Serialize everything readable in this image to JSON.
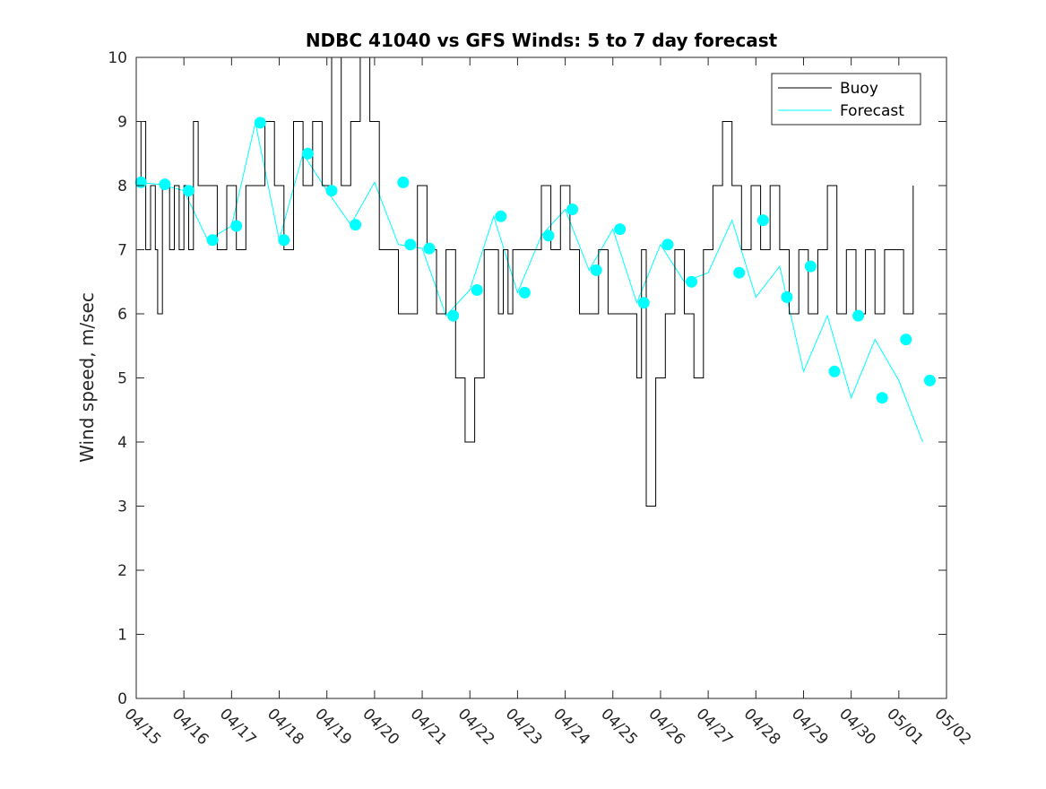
{
  "chart_data": {
    "type": "line",
    "title": "NDBC 41040 vs GFS Winds: 5 to 7 day forecast",
    "xlabel": "",
    "ylabel": "Wind speed, m/sec",
    "x_ticks": [
      "04/15",
      "04/16",
      "04/17",
      "04/18",
      "04/19",
      "04/20",
      "04/21",
      "04/22",
      "04/23",
      "04/24",
      "04/25",
      "04/26",
      "04/27",
      "04/28",
      "04/29",
      "04/30",
      "05/01",
      "05/02"
    ],
    "xlim": [
      0,
      17
    ],
    "ylim": [
      0,
      10
    ],
    "y_ticks": [
      0,
      1,
      2,
      3,
      4,
      5,
      6,
      7,
      8,
      9,
      10
    ],
    "grid": false,
    "legend": {
      "location": "top-right",
      "entries": [
        "Buoy",
        "Forecast"
      ]
    },
    "colors": {
      "buoy": "#000000",
      "forecast": "#00FFFF",
      "axes": "#262626"
    },
    "series": [
      {
        "name": "Buoy",
        "x": [
          0.0,
          0.1,
          0.2,
          0.3,
          0.4,
          0.45,
          0.55,
          0.7,
          0.8,
          0.9,
          1.0,
          1.1,
          1.2,
          1.3,
          1.5,
          1.7,
          1.9,
          2.1,
          2.3,
          2.5,
          2.7,
          2.9,
          3.1,
          3.3,
          3.5,
          3.7,
          3.9,
          4.1,
          4.3,
          4.5,
          4.7,
          4.9,
          5.1,
          5.3,
          5.5,
          5.7,
          5.9,
          6.1,
          6.3,
          6.5,
          6.7,
          6.9,
          7.1,
          7.3,
          7.5,
          7.6,
          7.7,
          7.8,
          7.9,
          8.1,
          8.3,
          8.5,
          8.7,
          8.9,
          9.1,
          9.3,
          9.5,
          9.7,
          9.9,
          10.1,
          10.3,
          10.5,
          10.6,
          10.7,
          10.9,
          11.1,
          11.3,
          11.5,
          11.7,
          11.9,
          12.1,
          12.3,
          12.5,
          12.7,
          12.9,
          13.1,
          13.3,
          13.5,
          13.7,
          13.9,
          14.1,
          14.3,
          14.5,
          14.7,
          14.9,
          15.1,
          15.3,
          15.5,
          15.7,
          15.9,
          16.1,
          16.3
        ],
        "values": [
          8,
          9,
          7,
          8,
          7,
          6,
          8,
          7,
          8,
          7,
          8,
          7,
          9,
          8,
          8,
          7,
          8,
          7,
          8,
          8,
          9,
          8,
          7,
          9,
          8,
          9,
          8,
          10,
          8,
          9,
          10,
          9,
          7,
          7,
          6,
          6,
          8,
          7,
          6,
          7,
          5,
          4,
          5,
          7,
          7,
          6,
          7,
          6,
          7,
          7,
          7,
          8,
          7,
          8,
          7,
          6,
          6,
          7,
          6,
          6,
          6,
          5,
          7,
          3,
          5,
          6,
          7,
          6,
          5,
          7,
          8,
          9,
          8,
          7,
          8,
          7,
          8,
          7,
          6,
          7,
          6,
          7,
          8,
          6,
          7,
          6,
          7,
          6,
          7,
          7,
          6,
          8
        ]
      },
      {
        "name": "Forecast",
        "x": [
          0.0,
          0.5,
          1.0,
          1.5,
          2.0,
          2.5,
          3.0,
          3.5,
          4.0,
          4.5,
          5.0,
          5.5,
          6.0,
          6.5,
          7.0,
          7.5,
          8.0,
          8.5,
          9.0,
          9.5,
          10.0,
          10.5,
          11.0,
          11.5,
          12.0,
          12.5,
          13.0,
          13.5,
          14.0,
          14.5,
          15.0,
          15.5,
          16.0,
          16.5
        ],
        "values": [
          8.05,
          8.02,
          7.92,
          7.15,
          7.37,
          8.98,
          7.15,
          8.5,
          7.92,
          7.39,
          8.05,
          7.08,
          7.02,
          5.97,
          6.37,
          7.52,
          6.33,
          7.22,
          7.63,
          6.68,
          7.32,
          6.17,
          7.08,
          6.5,
          6.64,
          7.46,
          6.26,
          6.74,
          5.1,
          5.97,
          4.69,
          5.6,
          4.96,
          4.0
        ]
      }
    ],
    "markers": {
      "name": "Forecast",
      "x": [
        0.1,
        0.6,
        1.1,
        1.6,
        2.1,
        2.6,
        3.1,
        3.6,
        4.1,
        4.6,
        5.6,
        5.75,
        6.15,
        6.65,
        7.15,
        7.65,
        8.15,
        8.65,
        9.15,
        9.65,
        10.15,
        10.65,
        11.15,
        11.65,
        12.65,
        13.15,
        13.65,
        14.15,
        14.65,
        15.15,
        15.65,
        16.15,
        16.65
      ],
      "values": [
        8.05,
        8.02,
        7.92,
        7.15,
        7.37,
        8.98,
        7.15,
        8.5,
        7.92,
        7.39,
        8.05,
        7.08,
        7.02,
        5.97,
        6.37,
        7.52,
        6.33,
        7.22,
        7.63,
        6.68,
        7.32,
        6.17,
        7.08,
        6.5,
        6.64,
        7.46,
        6.26,
        6.74,
        5.1,
        5.97,
        4.69,
        5.6,
        4.96
      ]
    }
  }
}
